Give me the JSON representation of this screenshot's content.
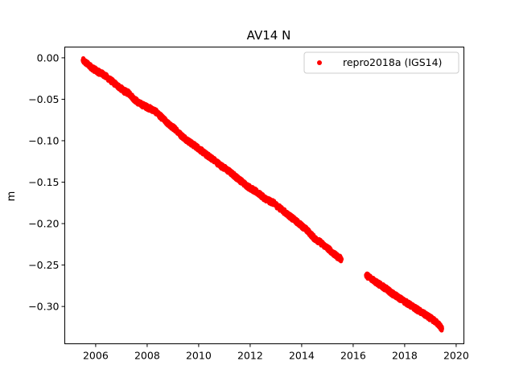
{
  "chart_data": {
    "type": "scatter",
    "title": "AV14 N",
    "xlabel": "",
    "ylabel": "m",
    "xlim": [
      2004.8,
      2020.3
    ],
    "ylim": [
      -0.345,
      0.013
    ],
    "x_ticks": [
      2006,
      2008,
      2010,
      2012,
      2014,
      2016,
      2018,
      2020
    ],
    "x_tick_labels": [
      "2006",
      "2008",
      "2010",
      "2012",
      "2014",
      "2016",
      "2018",
      "2020"
    ],
    "y_ticks": [
      0.0,
      -0.05,
      -0.1,
      -0.15,
      -0.2,
      -0.25,
      -0.3
    ],
    "y_tick_labels": [
      "0.00",
      "−0.05",
      "−0.10",
      "−0.15",
      "−0.20",
      "−0.25",
      "−0.30"
    ],
    "grid": false,
    "legend_position": "upper right",
    "series": [
      {
        "name": "repro2018a (IGS14)",
        "color": "#ff0000",
        "marker": "circle",
        "x": [
          2005.5,
          2005.7,
          2005.9,
          2006.1,
          2006.3,
          2006.5,
          2006.7,
          2006.9,
          2007.1,
          2007.3,
          2007.5,
          2007.7,
          2007.9,
          2008.1,
          2008.3,
          2008.5,
          2008.7,
          2008.9,
          2009.1,
          2009.3,
          2009.5,
          2009.7,
          2009.9,
          2010.1,
          2010.3,
          2010.5,
          2010.7,
          2010.9,
          2011.1,
          2011.3,
          2011.5,
          2011.7,
          2011.9,
          2012.1,
          2012.3,
          2012.5,
          2012.7,
          2012.9,
          2013.1,
          2013.3,
          2013.5,
          2013.7,
          2013.9,
          2014.1,
          2014.3,
          2014.5,
          2014.7,
          2014.9,
          2015.1,
          2015.3,
          2015.55,
          2016.5,
          2016.7,
          2016.9,
          2017.1,
          2017.3,
          2017.5,
          2017.7,
          2017.9,
          2018.1,
          2018.3,
          2018.5,
          2018.7,
          2018.9,
          2019.1,
          2019.3,
          2019.45
        ],
        "y": [
          -0.003,
          -0.008,
          -0.013,
          -0.017,
          -0.02,
          -0.025,
          -0.03,
          -0.035,
          -0.04,
          -0.043,
          -0.05,
          -0.055,
          -0.058,
          -0.061,
          -0.064,
          -0.07,
          -0.076,
          -0.082,
          -0.086,
          -0.093,
          -0.098,
          -0.103,
          -0.107,
          -0.112,
          -0.117,
          -0.121,
          -0.126,
          -0.131,
          -0.135,
          -0.14,
          -0.145,
          -0.15,
          -0.155,
          -0.159,
          -0.163,
          -0.168,
          -0.172,
          -0.175,
          -0.18,
          -0.185,
          -0.19,
          -0.195,
          -0.2,
          -0.205,
          -0.211,
          -0.218,
          -0.222,
          -0.227,
          -0.232,
          -0.238,
          -0.243,
          -0.262,
          -0.266,
          -0.271,
          -0.275,
          -0.279,
          -0.284,
          -0.288,
          -0.292,
          -0.296,
          -0.3,
          -0.304,
          -0.308,
          -0.312,
          -0.316,
          -0.321,
          -0.327
        ]
      }
    ]
  }
}
